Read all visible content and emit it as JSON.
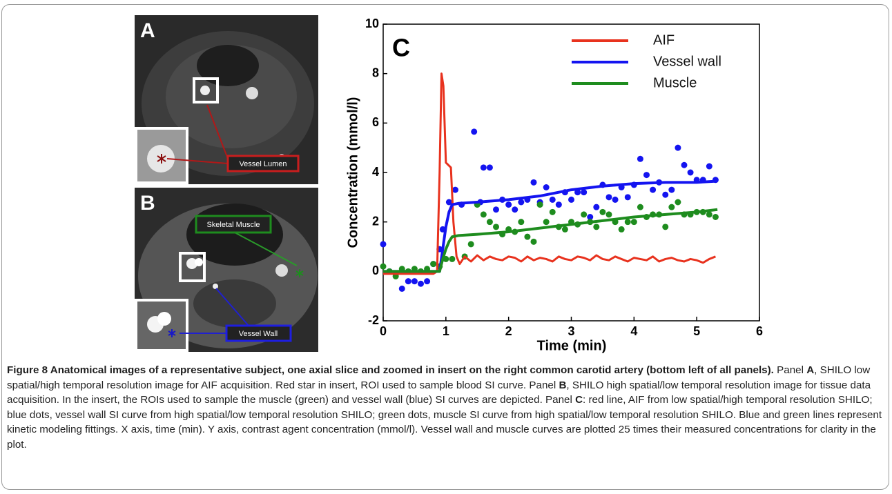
{
  "panels": [
    {
      "label": "A",
      "callouts": [
        "Vessel Lumen"
      ]
    },
    {
      "label": "B",
      "callouts": [
        "Skeletal Muscle",
        "Vessel Wall"
      ]
    }
  ],
  "chart_data": {
    "type": "line",
    "panel_label": "C",
    "xlabel": "Time (min)",
    "ylabel": "Concentration (mmol/l)",
    "xlim": [
      0,
      6
    ],
    "xticks": [
      0,
      1,
      2,
      3,
      4,
      5,
      6
    ],
    "ylim": [
      -2,
      10
    ],
    "yticks": [
      -2,
      0,
      2,
      4,
      6,
      8,
      10
    ],
    "legend": "upper right",
    "series": [
      {
        "name": "AIF",
        "color": "#e8321e",
        "mode": "line",
        "x": [
          0,
          0.2,
          0.4,
          0.6,
          0.8,
          0.86,
          0.9,
          0.93,
          0.96,
          1.0,
          1.04,
          1.08,
          1.12,
          1.17,
          1.22,
          1.3,
          1.4,
          1.5,
          1.6,
          1.7,
          1.8,
          1.9,
          2.0,
          2.1,
          2.2,
          2.3,
          2.4,
          2.5,
          2.6,
          2.7,
          2.8,
          2.9,
          3.0,
          3.1,
          3.2,
          3.3,
          3.4,
          3.5,
          3.6,
          3.7,
          3.8,
          3.9,
          4.0,
          4.1,
          4.2,
          4.3,
          4.4,
          4.5,
          4.6,
          4.7,
          4.8,
          4.9,
          5.0,
          5.1,
          5.2,
          5.3
        ],
        "values": [
          -0.1,
          -0.1,
          -0.1,
          -0.1,
          -0.1,
          0,
          4,
          8,
          7.5,
          4.4,
          4.3,
          4.2,
          2,
          0.6,
          0.3,
          0.6,
          0.4,
          0.65,
          0.45,
          0.6,
          0.5,
          0.45,
          0.6,
          0.55,
          0.4,
          0.6,
          0.45,
          0.55,
          0.5,
          0.4,
          0.6,
          0.5,
          0.45,
          0.6,
          0.55,
          0.45,
          0.65,
          0.5,
          0.45,
          0.6,
          0.5,
          0.4,
          0.55,
          0.5,
          0.45,
          0.6,
          0.4,
          0.5,
          0.55,
          0.45,
          0.4,
          0.5,
          0.45,
          0.35,
          0.5,
          0.6
        ]
      },
      {
        "name": "Vessel wall",
        "color": "#1414f0",
        "mode": "line",
        "x": [
          0,
          0.9,
          0.95,
          1.0,
          1.05,
          1.1,
          1.2,
          1.5,
          2.0,
          2.5,
          3.0,
          3.5,
          4.0,
          4.5,
          5.0,
          5.33
        ],
        "values": [
          0,
          0,
          0.9,
          1.8,
          2.4,
          2.7,
          2.75,
          2.8,
          2.9,
          3.05,
          3.3,
          3.45,
          3.55,
          3.6,
          3.6,
          3.65
        ]
      },
      {
        "name": "Muscle",
        "color": "#1e8c1e",
        "mode": "line",
        "x": [
          0,
          0.9,
          0.95,
          1.0,
          1.05,
          1.1,
          1.2,
          1.5,
          2.0,
          2.5,
          3.0,
          3.5,
          4.0,
          4.5,
          5.0,
          5.33
        ],
        "values": [
          0,
          0,
          0.5,
          0.9,
          1.2,
          1.4,
          1.45,
          1.5,
          1.6,
          1.75,
          1.9,
          2.05,
          2.2,
          2.3,
          2.4,
          2.5
        ]
      },
      {
        "color": "#1414f0",
        "mode": "markers",
        "x": [
          0,
          0.1,
          0.2,
          0.3,
          0.4,
          0.5,
          0.6,
          0.7,
          0.8,
          0.9,
          0.95,
          1.05,
          1.15,
          1.25,
          1.45,
          1.55,
          1.6,
          1.7,
          1.8,
          1.9,
          2.0,
          2.1,
          2.2,
          2.3,
          2.4,
          2.5,
          2.6,
          2.7,
          2.8,
          2.9,
          3.0,
          3.1,
          3.2,
          3.3,
          3.4,
          3.5,
          3.6,
          3.7,
          3.8,
          3.9,
          4.0,
          4.1,
          4.2,
          4.3,
          4.4,
          4.5,
          4.6,
          4.7,
          4.8,
          4.9,
          5.0,
          5.1,
          5.2,
          5.3
        ],
        "values": [
          1.1,
          0,
          -0.1,
          -0.7,
          -0.4,
          -0.4,
          -0.5,
          -0.4,
          0.3,
          0.9,
          1.7,
          2.8,
          3.3,
          2.7,
          5.65,
          2.8,
          4.2,
          4.2,
          2.5,
          2.9,
          2.7,
          2.5,
          2.8,
          2.9,
          3.6,
          2.8,
          3.4,
          2.9,
          2.7,
          3.2,
          2.9,
          3.2,
          3.2,
          2.2,
          2.6,
          3.5,
          3.0,
          2.9,
          3.4,
          3.0,
          3.5,
          4.55,
          3.9,
          3.3,
          3.6,
          3.1,
          3.3,
          5.0,
          4.3,
          4.0,
          3.7,
          3.7,
          4.25,
          3.7
        ]
      },
      {
        "color": "#1e8c1e",
        "mode": "markers",
        "x": [
          0,
          0.1,
          0.2,
          0.3,
          0.4,
          0.5,
          0.6,
          0.7,
          0.8,
          0.9,
          1.0,
          1.1,
          1.3,
          1.4,
          1.5,
          1.6,
          1.7,
          1.8,
          1.9,
          2.0,
          2.1,
          2.2,
          2.3,
          2.4,
          2.5,
          2.6,
          2.7,
          2.8,
          2.9,
          3.0,
          3.1,
          3.2,
          3.3,
          3.4,
          3.5,
          3.6,
          3.7,
          3.8,
          3.9,
          4.0,
          4.1,
          4.2,
          4.3,
          4.4,
          4.5,
          4.6,
          4.7,
          4.8,
          4.9,
          5.0,
          5.1,
          5.2,
          5.3
        ],
        "values": [
          0.2,
          0,
          -0.2,
          0.1,
          0,
          0.1,
          0,
          0.1,
          0.3,
          0.2,
          0.5,
          0.5,
          0.6,
          1.1,
          2.7,
          2.3,
          2.0,
          1.8,
          1.5,
          1.7,
          1.6,
          2.0,
          1.4,
          1.2,
          2.7,
          2.0,
          2.4,
          1.8,
          1.7,
          2.0,
          1.9,
          2.3,
          2.0,
          1.8,
          2.4,
          2.3,
          2.0,
          1.7,
          2.0,
          2.0,
          2.6,
          2.2,
          2.3,
          2.3,
          1.8,
          2.6,
          2.8,
          2.3,
          2.3,
          2.4,
          2.4,
          2.3,
          2.2
        ]
      }
    ]
  },
  "caption": {
    "title": "Figure 8 Anatomical images of a representative subject, one axial slice and zoomed in insert on the right common carotid artery (bottom left of all panels).",
    "parts": [
      " Panel ",
      "A",
      ", SHILO low spatial/high temporal resolution image for AIF acquisition. Red star in insert, ROI used to sample blood SI curve. Panel ",
      "B",
      ", SHILO high spatial/low temporal resolution image for tissue data acquisition. In the insert, the ROIs used to sample the muscle (green) and vessel wall (blue) SI curves are depicted. Panel ",
      "C",
      ": red line, AIF from low spatial/high temporal resolution SHILO; blue dots, vessel wall SI curve from high spatial/low temporal resolution SHILO; green dots, muscle SI curve from high spatial/low temporal resolution SHILO. Blue and green lines represent kinetic modeling fittings. X axis, time (min). Y axis, contrast agent concentration (mmol/l). Vessel wall and muscle curves are plotted 25 times their measured concentrations for clarity in the plot."
    ]
  }
}
